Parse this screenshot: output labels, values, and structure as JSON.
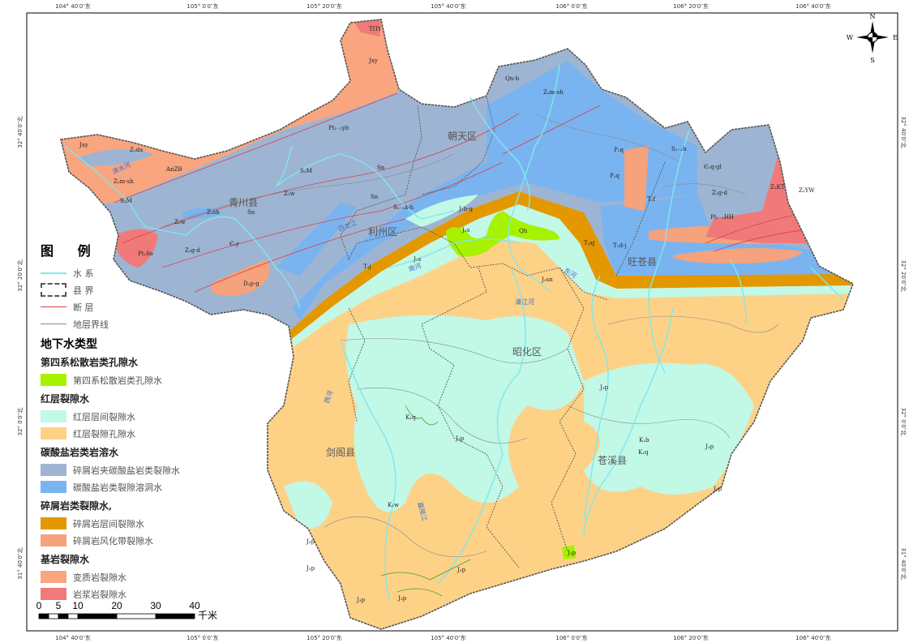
{
  "coords": {
    "top": [
      "104° 40′0″东",
      "105° 0′0″东",
      "105° 20′0″东",
      "105° 40′0″东",
      "106° 0′0″东",
      "106° 20′0″东",
      "106° 40′0″东"
    ],
    "bottom": [
      "104° 40′0″东",
      "105° 0′0″东",
      "105° 20′0″东",
      "105° 40′0″东",
      "106° 0′0″东",
      "106° 20′0″东",
      "106° 40′0″东"
    ],
    "left": [
      "32° 40′0″北",
      "32° 20′0″北",
      "32° 0′0″北",
      "31° 40′0″北"
    ],
    "right": [
      "32° 40′0″北",
      "32° 20′0″北",
      "32° 0′0″北",
      "31° 40′0″北"
    ]
  },
  "compass": {
    "n": "N",
    "s": "S",
    "e": "E",
    "w": "W"
  },
  "counties": [
    "青川县",
    "朝天区",
    "利州区",
    "旺苍县",
    "昭化区",
    "剑阁县",
    "苍溪县"
  ],
  "units": [
    "TΠY",
    "Jxy",
    "Pt₁₋₂yb",
    "Jxy",
    "Z₁da",
    "AnZB",
    "Z₂m-sh",
    "S₂M",
    "S₂M",
    "Z₂w",
    "Z₂sh",
    "Sn",
    "Z₂w",
    "Pt₁δo",
    "Z₂g-d",
    "Є₁y",
    "D₂p-g",
    "Sn",
    "Sn",
    "S₁₋₂k-h",
    "J₂b-q",
    "J₂s",
    "Qh",
    "T₃j",
    "J₂s",
    "Qn-b",
    "Z₂m-sh",
    "P₁q",
    "P₁q",
    "S₁₋₂h",
    "Є₁q-gl",
    "Z₁g-d",
    "Z₂KT",
    "Z₂YW",
    "Pt₁₋₂HH",
    "T₁f",
    "T₃xj",
    "T₁d-j",
    "J₃sn",
    "J₃p",
    "K₁q",
    "J₃p",
    "K₁b",
    "K₁q",
    "J₃p",
    "J₃p",
    "K₁w",
    "J₃p",
    "J₃p",
    "J₃p",
    "J₃p",
    "J₃p",
    "J₃p"
  ],
  "rivers": [
    "清水河",
    "白龙江",
    "南河",
    "西河",
    "嘉陵江",
    "东河",
    "清江河"
  ],
  "legend": {
    "title": "图 例",
    "lines": [
      {
        "label": "水 系",
        "color": "#7fe8ee"
      },
      {
        "label": "县 界",
        "color": "#555555"
      },
      {
        "label": "断 层",
        "color": "#d9404a"
      },
      {
        "label": "地层界线",
        "color": "#888888"
      }
    ],
    "groundwater_title": "地下水类型",
    "groups": [
      {
        "title": "第四系松散岩类孔隙水",
        "items": [
          {
            "label": "第四系松散岩类孔隙水",
            "color": "#a6f200"
          }
        ]
      },
      {
        "title": "红层裂隙水",
        "items": [
          {
            "label": "红层层间裂隙水",
            "color": "#c2f8e6"
          },
          {
            "label": "红层裂隙孔隙水",
            "color": "#fdd287"
          }
        ]
      },
      {
        "title": "碳酸盐岩类岩溶水",
        "items": [
          {
            "label": "碎屑岩夹碳酸盐岩类裂隙水",
            "color": "#9db5d3"
          },
          {
            "label": "碳酸盐岩类裂隙溶洞水",
            "color": "#7ab4f0"
          }
        ]
      },
      {
        "title": "碎屑岩类裂隙水,",
        "items": [
          {
            "label": "碎屑岩层间裂隙水",
            "color": "#e39800"
          },
          {
            "label": "碎屑岩风化带裂隙水",
            "color": "#f5a27d"
          }
        ]
      },
      {
        "title": "基岩裂隙水",
        "items": [
          {
            "label": "变质岩裂隙水",
            "color": "#f9a57f"
          },
          {
            "label": "岩浆岩裂隙水",
            "color": "#f07a7a"
          }
        ]
      }
    ]
  },
  "scale": {
    "ticks": [
      "0",
      "5",
      "10",
      "20",
      "30",
      "40"
    ],
    "unit": "千米"
  }
}
